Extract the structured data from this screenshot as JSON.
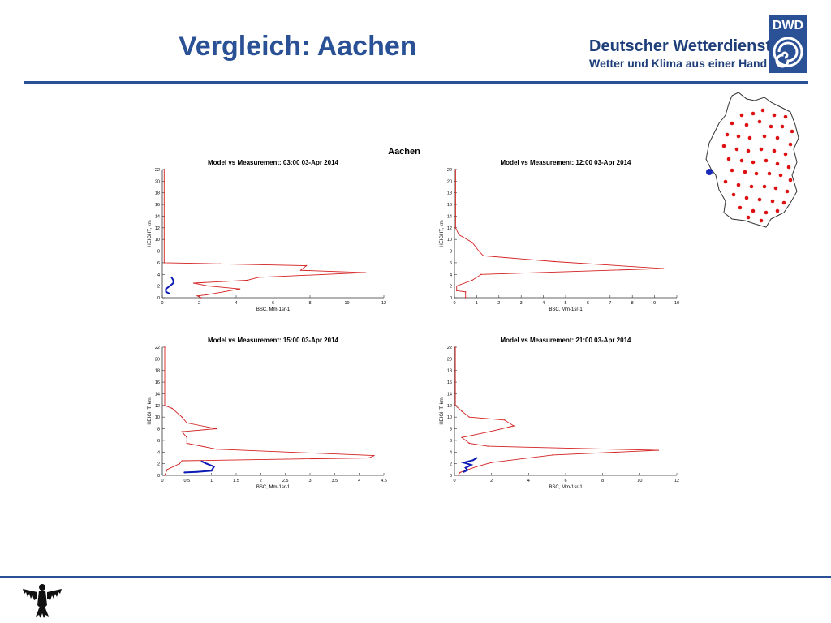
{
  "header": {
    "title": "Vergleich: Aachen",
    "brand_line1": "Deutscher Wetterdienst",
    "brand_line2": "Wetter und Klima aus einer Hand",
    "logo_text": "DWD"
  },
  "colors": {
    "accent": "#2a5095",
    "model": "#d42020",
    "measurement": "#0a1ab4",
    "station": "#dd1111"
  },
  "chart_data": {
    "figure_title": "Aachen",
    "charts": [
      {
        "type": "line",
        "title": "Model vs Measurement: 03:00 03-Apr 2014",
        "xlabel": "BSC, Mm-1sr-1",
        "ylabel": "HEIGHT, km",
        "xlim": [
          0,
          12
        ],
        "ylim": [
          0,
          22
        ],
        "xticks": [
          0,
          2,
          4,
          6,
          8,
          10,
          12
        ],
        "yticks": [
          0,
          2,
          4,
          6,
          8,
          10,
          12,
          14,
          16,
          18,
          20,
          22
        ],
        "series": [
          {
            "role": "model",
            "points": [
              [
                2.1,
                0
              ],
              [
                1.9,
                0.3
              ],
              [
                2.4,
                0.5
              ],
              [
                4.2,
                1.5
              ],
              [
                2.5,
                2.0
              ],
              [
                1.7,
                2.5
              ],
              [
                4.6,
                3.0
              ],
              [
                5.2,
                3.5
              ],
              [
                11.0,
                4.3
              ],
              [
                7.5,
                4.7
              ],
              [
                7.8,
                5.5
              ],
              [
                3.1,
                5.8
              ],
              [
                0.1,
                6.0
              ],
              [
                0.1,
                22
              ]
            ]
          },
          {
            "role": "measurement",
            "points": [
              [
                0.4,
                0.7
              ],
              [
                0.2,
                1.0
              ],
              [
                0.2,
                1.5
              ],
              [
                0.4,
                2.0
              ],
              [
                0.6,
                2.5
              ],
              [
                0.6,
                3.0
              ],
              [
                0.5,
                3.5
              ]
            ]
          }
        ]
      },
      {
        "type": "line",
        "title": "Model vs Measurement: 12:00 03-Apr 2014",
        "xlabel": "BSC, Mm-1sr-1",
        "ylabel": "HEIGHT, km",
        "xlim": [
          0,
          10
        ],
        "ylim": [
          0,
          22
        ],
        "xticks": [
          0,
          1,
          2,
          3,
          4,
          5,
          6,
          7,
          8,
          9,
          10
        ],
        "yticks": [
          0,
          2,
          4,
          6,
          8,
          10,
          12,
          14,
          16,
          18,
          20,
          22
        ],
        "series": [
          {
            "role": "model",
            "points": [
              [
                0.5,
                0
              ],
              [
                0.5,
                1.0
              ],
              [
                0.1,
                1.2
              ],
              [
                0.1,
                2.0
              ],
              [
                0.8,
                3.0
              ],
              [
                1.2,
                4.0
              ],
              [
                9.4,
                5.0
              ],
              [
                4.5,
                6.2
              ],
              [
                1.3,
                7.2
              ],
              [
                1.1,
                8.0
              ],
              [
                0.8,
                9.5
              ],
              [
                0.2,
                10.8
              ],
              [
                0.05,
                12.0
              ],
              [
                0.05,
                22
              ]
            ]
          },
          {
            "role": "measurement",
            "points": []
          }
        ]
      },
      {
        "type": "line",
        "title": "Model vs Measurement: 15:00 03-Apr 2014",
        "xlabel": "BSC, Mm-1sr-1",
        "ylabel": "HEIGHT, km",
        "xlim": [
          0,
          4.5
        ],
        "ylim": [
          0,
          22
        ],
        "xticks": [
          0,
          0.5,
          1,
          1.5,
          2,
          2.5,
          3,
          3.5,
          4,
          4.5
        ],
        "xticklabels": [
          "0",
          "0.5",
          "1",
          "1.5",
          "2",
          "2.5",
          "3",
          "3.5",
          "4",
          "4.5"
        ],
        "yticks": [
          0,
          2,
          4,
          6,
          8,
          10,
          12,
          14,
          16,
          18,
          20,
          22
        ],
        "series": [
          {
            "role": "model",
            "points": [
              [
                0.05,
                0
              ],
              [
                0.1,
                1.0
              ],
              [
                0.35,
                2.0
              ],
              [
                0.4,
                2.5
              ],
              [
                4.2,
                3.0
              ],
              [
                4.3,
                3.4
              ],
              [
                1.1,
                4.5
              ],
              [
                0.5,
                5.5
              ],
              [
                0.5,
                6.5
              ],
              [
                0.4,
                7.5
              ],
              [
                1.1,
                8.0
              ],
              [
                0.5,
                9.0
              ],
              [
                0.4,
                10.0
              ],
              [
                0.2,
                11.5
              ],
              [
                0.05,
                12.0
              ],
              [
                0.05,
                22
              ]
            ]
          },
          {
            "role": "measurement",
            "points": [
              [
                0.45,
                0.5
              ],
              [
                0.7,
                0.6
              ],
              [
                1.0,
                0.8
              ],
              [
                1.05,
                1.5
              ],
              [
                0.9,
                2.0
              ],
              [
                0.8,
                2.4
              ]
            ]
          }
        ]
      },
      {
        "type": "line",
        "title": "Model vs Measurement: 21:00 03-Apr 2014",
        "xlabel": "BSC, Mm-1sr-1",
        "ylabel": "HEIGHT, km",
        "xlim": [
          0,
          12
        ],
        "ylim": [
          0,
          22
        ],
        "xticks": [
          0,
          2,
          4,
          6,
          8,
          10,
          12
        ],
        "yticks": [
          0,
          2,
          4,
          6,
          8,
          10,
          12,
          14,
          16,
          18,
          20,
          22
        ],
        "series": [
          {
            "role": "model",
            "points": [
              [
                0.2,
                0
              ],
              [
                0.3,
                0.5
              ],
              [
                1.2,
                1.5
              ],
              [
                2.0,
                2.2
              ],
              [
                5.3,
                3.5
              ],
              [
                11.0,
                4.3
              ],
              [
                1.8,
                5.0
              ],
              [
                0.8,
                5.5
              ],
              [
                0.4,
                6.5
              ],
              [
                1.9,
                7.5
              ],
              [
                3.2,
                8.5
              ],
              [
                2.7,
                9.5
              ],
              [
                0.8,
                10.0
              ],
              [
                0.4,
                11.0
              ],
              [
                0.05,
                12.0
              ],
              [
                0.05,
                22
              ]
            ]
          },
          {
            "role": "measurement",
            "points": [
              [
                0.5,
                0.6
              ],
              [
                0.7,
                0.9
              ],
              [
                0.6,
                1.3
              ],
              [
                0.9,
                1.8
              ],
              [
                0.5,
                2.2
              ],
              [
                1.0,
                2.6
              ],
              [
                1.2,
                3.0
              ]
            ]
          }
        ]
      }
    ]
  },
  "map": {
    "stations_count": 52,
    "highlighted_station": "Aachen"
  }
}
